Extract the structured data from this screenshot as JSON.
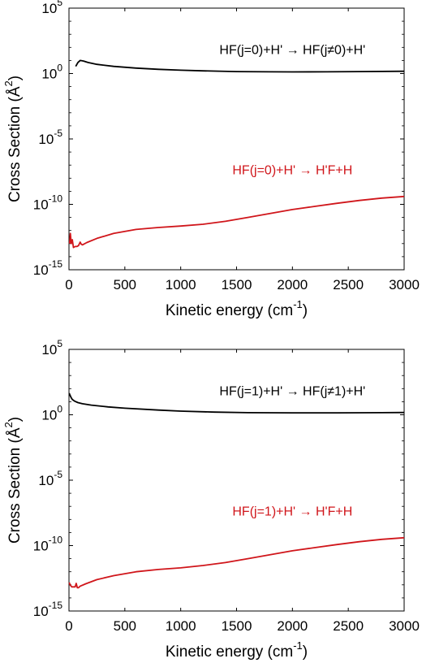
{
  "chart_data": [
    {
      "type": "line",
      "xlabel": "Kinetic energy (cm",
      "xlabel_sup": "-1",
      "xlabel_end": ")",
      "ylabel": "Cross Section (Å",
      "ylabel_sup": "2",
      "ylabel_end": ")",
      "xlim": [
        0,
        3000
      ],
      "ylim": [
        1e-15,
        100000.0
      ],
      "yscale": "log",
      "grid": false,
      "x_ticks": [
        0,
        500,
        1000,
        1500,
        2000,
        2500,
        3000
      ],
      "x_tick_labels": [
        "0",
        "500",
        "1000",
        "1500",
        "2000",
        "2500",
        "3000"
      ],
      "y_ticks": [
        1e-15,
        1e-10,
        1e-05,
        1.0,
        100000.0
      ],
      "y_tick_labels": [
        {
          "base": "10",
          "exp": "-15"
        },
        {
          "base": "10",
          "exp": "-10"
        },
        {
          "base": "10",
          "exp": "-5"
        },
        {
          "base": "10",
          "exp": "0"
        },
        {
          "base": "10",
          "exp": "5"
        }
      ],
      "annotations": [
        {
          "text": "HF(j=0)+H' → HF(j≠0)+H'",
          "color": "#000000",
          "x": 2000,
          "y": 30
        },
        {
          "text": "HF(j=0)+H' → H'F+H",
          "color": "#d0161b",
          "x": 2000,
          "y": 2e-08
        }
      ],
      "series": [
        {
          "color": "#000000",
          "x": [
            60,
            80,
            100,
            130,
            170,
            250,
            400,
            600,
            800,
            1000,
            1200,
            1500,
            1800,
            2000,
            2300,
            2600,
            3000
          ],
          "y": [
            3.5,
            7,
            10,
            9,
            7,
            5,
            3.5,
            2.6,
            2.1,
            1.8,
            1.6,
            1.4,
            1.35,
            1.33,
            1.35,
            1.4,
            1.5
          ]
        },
        {
          "color": "#d0161b",
          "x": [
            5,
            12,
            20,
            30,
            40,
            55,
            70,
            85,
            100,
            110,
            120,
            160,
            250,
            400,
            600,
            800,
            1000,
            1200,
            1400,
            1600,
            1800,
            2000,
            2200,
            2400,
            2600,
            2800,
            3000
          ],
          "y": [
            1e-13,
            6e-13,
            1e-13,
            2e-13,
            5e-14,
            6e-14,
            6e-14,
            7e-14,
            1.3e-13,
            9e-14,
            8e-14,
            1.2e-13,
            2.5e-13,
            6e-13,
            1.2e-12,
            1.7e-12,
            2.2e-12,
            3e-12,
            5e-12,
            1e-11,
            2e-11,
            4e-11,
            7e-11,
            1.2e-10,
            2e-10,
            3e-10,
            4e-10
          ]
        }
      ]
    },
    {
      "type": "line",
      "xlabel": "Kinetic energy (cm",
      "xlabel_sup": "-1",
      "xlabel_end": ")",
      "ylabel": "Cross Section (Å",
      "ylabel_sup": "2",
      "ylabel_end": ")",
      "xlim": [
        0,
        3000
      ],
      "ylim": [
        1e-15,
        100000.0
      ],
      "yscale": "log",
      "grid": false,
      "x_ticks": [
        0,
        500,
        1000,
        1500,
        2000,
        2500,
        3000
      ],
      "x_tick_labels": [
        "0",
        "500",
        "1000",
        "1500",
        "2000",
        "2500",
        "3000"
      ],
      "y_ticks": [
        1e-15,
        1e-10,
        1e-05,
        1.0,
        100000.0
      ],
      "y_tick_labels": [
        {
          "base": "10",
          "exp": "-15"
        },
        {
          "base": "10",
          "exp": "-10"
        },
        {
          "base": "10",
          "exp": "-5"
        },
        {
          "base": "10",
          "exp": "0"
        },
        {
          "base": "10",
          "exp": "5"
        }
      ],
      "annotations": [
        {
          "text": "HF(j=1)+H' → HF(j≠1)+H'",
          "color": "#000000",
          "x": 2000,
          "y": 30
        },
        {
          "text": "HF(j=1)+H' → H'F+H",
          "color": "#d0161b",
          "x": 2000,
          "y": 2e-08
        }
      ],
      "series": [
        {
          "color": "#000000",
          "x": [
            2,
            10,
            20,
            30,
            50,
            80,
            120,
            200,
            350,
            500,
            800,
            1000,
            1300,
            1600,
            2000,
            2400,
            2800,
            3000
          ],
          "y": [
            45,
            30,
            20,
            15,
            11,
            8.5,
            7,
            5.5,
            4,
            3.2,
            2.3,
            1.9,
            1.6,
            1.45,
            1.4,
            1.4,
            1.45,
            1.5
          ]
        },
        {
          "color": "#d0161b",
          "x": [
            2,
            10,
            25,
            40,
            55,
            65,
            75,
            85,
            100,
            150,
            250,
            400,
            600,
            800,
            1000,
            1200,
            1400,
            1600,
            1800,
            2000,
            2200,
            2400,
            2600,
            2800,
            3000
          ],
          "y": [
            1.5e-13,
            1e-13,
            7e-14,
            7e-14,
            7e-14,
            1.3e-13,
            6e-14,
            6e-14,
            8e-14,
            1.2e-13,
            2.5e-13,
            5e-13,
            1e-12,
            1.5e-12,
            2e-12,
            3e-12,
            5e-12,
            1e-11,
            2e-11,
            4e-11,
            7e-11,
            1.2e-10,
            2e-10,
            3e-10,
            4e-10
          ]
        }
      ]
    }
  ]
}
